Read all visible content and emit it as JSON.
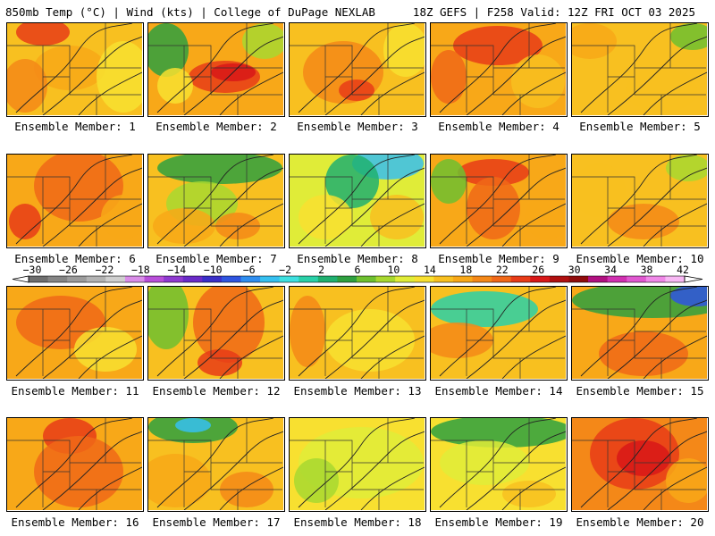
{
  "header": {
    "left": "850mb Temp (°C) | Wind (kts) | College of DuPage NEXLAB",
    "right": "18Z GEFS | F258 Valid: 12Z FRI OCT 03 2025"
  },
  "panels": [
    {
      "label": "Ensemble Member: 1",
      "member": 1
    },
    {
      "label": "Ensemble Member: 2",
      "member": 2
    },
    {
      "label": "Ensemble Member: 3",
      "member": 3
    },
    {
      "label": "Ensemble Member: 4",
      "member": 4
    },
    {
      "label": "Ensemble Member: 5",
      "member": 5
    },
    {
      "label": "Ensemble Member: 6",
      "member": 6
    },
    {
      "label": "Ensemble Member: 7",
      "member": 7
    },
    {
      "label": "Ensemble Member: 8",
      "member": 8
    },
    {
      "label": "Ensemble Member: 9",
      "member": 9
    },
    {
      "label": "Ensemble Member: 10",
      "member": 10
    },
    {
      "label": "Ensemble Member: 11",
      "member": 11
    },
    {
      "label": "Ensemble Member: 12",
      "member": 12
    },
    {
      "label": "Ensemble Member: 13",
      "member": 13
    },
    {
      "label": "Ensemble Member: 14",
      "member": 14
    },
    {
      "label": "Ensemble Member: 15",
      "member": 15
    },
    {
      "label": "Ensemble Member: 16",
      "member": 16
    },
    {
      "label": "Ensemble Member: 17",
      "member": 17
    },
    {
      "label": "Ensemble Member: 18",
      "member": 18
    },
    {
      "label": "Ensemble Member: 19",
      "member": 19
    },
    {
      "label": "Ensemble Member: 20",
      "member": 20
    }
  ],
  "colorbar": {
    "labels": [
      "−30",
      "−26",
      "−22",
      "−18",
      "−14",
      "−10",
      "−6",
      "−2",
      "2",
      "6",
      "10",
      "14",
      "18",
      "22",
      "26",
      "30",
      "34",
      "38",
      "42"
    ],
    "colors": [
      "#6e6e6e",
      "#858585",
      "#9c9c9c",
      "#b3b3b3",
      "#cfcfcf",
      "#d98de8",
      "#b84fd9",
      "#8f3ad0",
      "#6a2bc8",
      "#3a2fc8",
      "#2f55e0",
      "#2f8ef0",
      "#36c0f0",
      "#3fe0e0",
      "#2ad0a8",
      "#20b070",
      "#2fa040",
      "#6ec030",
      "#a8d830",
      "#e0ec38",
      "#f8e030",
      "#f8c020",
      "#f8a818",
      "#f48818",
      "#f06818",
      "#e83c18",
      "#d81818",
      "#b01010",
      "#900c0c",
      "#b01080",
      "#d030b0",
      "#e058d0",
      "#f088e8",
      "#f8b8f4"
    ]
  }
}
